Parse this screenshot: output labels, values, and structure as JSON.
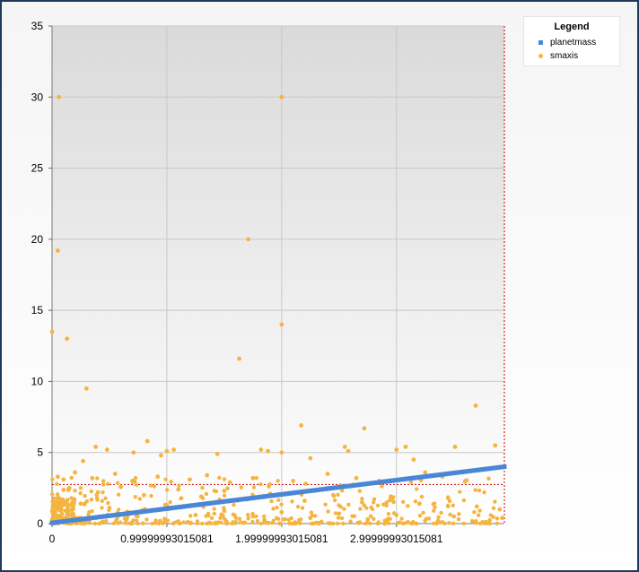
{
  "chart_data": {
    "type": "scatter",
    "title": "",
    "xlabel": "",
    "ylabel": "",
    "xlim": [
      0,
      3.94
    ],
    "ylim": [
      0,
      35
    ],
    "x_ticks": [
      {
        "value": 0,
        "label": "0"
      },
      {
        "value": 0.99999993015081,
        "label": "0.99999993015081"
      },
      {
        "value": 1.99999993015081,
        "label": "1.99999993015081"
      },
      {
        "value": 2.99999993015081,
        "label": "2.99999993015081"
      }
    ],
    "y_ticks": [
      0,
      5,
      10,
      15,
      20,
      25,
      30,
      35
    ],
    "grid": true,
    "legend": {
      "title": "Legend",
      "placement": "top-right",
      "entries": [
        {
          "name": "planetmass",
          "color": "#4a86d8",
          "marker": "square"
        },
        {
          "name": "smaxis",
          "color": "#f5b440",
          "marker": "circle"
        }
      ]
    },
    "reference_lines": [
      {
        "axis": "y",
        "value": 2.75,
        "color": "#cc0000",
        "style": "dashed"
      },
      {
        "axis": "x",
        "value": 3.94,
        "color": "#cc0000",
        "style": "dashed"
      }
    ],
    "series": [
      {
        "name": "planetmass",
        "color": "#4a86d8",
        "trend": "linear",
        "x_range": [
          0,
          3.94
        ],
        "y_range": [
          0.05,
          4.0
        ]
      },
      {
        "name": "smaxis",
        "color": "#f5b440",
        "points": [
          [
            0.06,
            30.0
          ],
          [
            2.0,
            30.0
          ],
          [
            0.05,
            19.2
          ],
          [
            1.71,
            20.0
          ],
          [
            0.0,
            13.5
          ],
          [
            0.13,
            13.0
          ],
          [
            2.0,
            14.0
          ],
          [
            1.63,
            11.6
          ],
          [
            0.3,
            9.5
          ],
          [
            3.69,
            8.3
          ],
          [
            2.17,
            6.9
          ],
          [
            2.72,
            6.7
          ],
          [
            0.83,
            5.8
          ],
          [
            1.06,
            5.2
          ],
          [
            1.0,
            5.1
          ],
          [
            2.55,
            5.4
          ],
          [
            2.58,
            5.1
          ],
          [
            1.82,
            5.2
          ],
          [
            1.88,
            5.1
          ],
          [
            2.0,
            5.0
          ],
          [
            3.08,
            5.4
          ],
          [
            3.0,
            5.2
          ],
          [
            3.51,
            5.4
          ],
          [
            3.86,
            5.5
          ],
          [
            0.38,
            5.4
          ],
          [
            0.48,
            5.2
          ],
          [
            0.71,
            5.0
          ],
          [
            1.44,
            4.9
          ],
          [
            2.25,
            4.6
          ],
          [
            3.15,
            4.5
          ],
          [
            0.95,
            4.8
          ],
          [
            0.27,
            4.4
          ],
          [
            0.05,
            3.3
          ],
          [
            0.1,
            3.1
          ],
          [
            0.2,
            3.6
          ],
          [
            0.35,
            3.2
          ],
          [
            0.55,
            3.5
          ],
          [
            0.7,
            3.0
          ],
          [
            0.92,
            3.3
          ],
          [
            1.2,
            3.1
          ],
          [
            1.35,
            3.4
          ],
          [
            1.55,
            2.9
          ],
          [
            1.75,
            3.2
          ],
          [
            2.1,
            3.0
          ],
          [
            2.4,
            3.5
          ],
          [
            2.65,
            3.2
          ],
          [
            2.85,
            3.0
          ],
          [
            3.25,
            3.6
          ],
          [
            3.4,
            3.3
          ],
          [
            3.6,
            3.0
          ],
          [
            0.15,
            2.5
          ],
          [
            0.4,
            2.2
          ],
          [
            0.6,
            2.6
          ],
          [
            0.8,
            2.0
          ],
          [
            1.1,
            2.4
          ],
          [
            1.3,
            1.9
          ],
          [
            1.5,
            2.3
          ],
          [
            1.7,
            1.7
          ],
          [
            1.9,
            2.1
          ],
          [
            2.2,
            1.6
          ],
          [
            2.45,
            2.0
          ],
          [
            2.7,
            1.5
          ],
          [
            2.95,
            1.9
          ],
          [
            3.2,
            1.4
          ],
          [
            3.45,
            1.8
          ],
          [
            3.7,
            1.2
          ],
          [
            3.9,
            1.0
          ],
          [
            0.05,
            1.8
          ],
          [
            0.02,
            1.5
          ],
          [
            0.08,
            1.2
          ],
          [
            0.12,
            0.9
          ],
          [
            0.03,
            0.7
          ],
          [
            0.07,
            0.5
          ],
          [
            0.1,
            0.3
          ],
          [
            0.0,
            0.2
          ],
          [
            0.25,
            1.4
          ],
          [
            0.5,
            1.1
          ],
          [
            0.75,
            0.8
          ],
          [
            1.0,
            1.3
          ],
          [
            1.25,
            0.6
          ],
          [
            1.5,
            0.9
          ],
          [
            1.75,
            0.5
          ],
          [
            2.0,
            0.8
          ],
          [
            2.25,
            0.4
          ],
          [
            2.5,
            0.7
          ],
          [
            2.75,
            0.3
          ],
          [
            3.0,
            0.6
          ],
          [
            3.25,
            0.2
          ],
          [
            3.5,
            0.5
          ],
          [
            3.75,
            0.1
          ],
          [
            3.92,
            0.4
          ],
          [
            0.3,
            0.1
          ],
          [
            0.9,
            0.05
          ],
          [
            1.6,
            0.1
          ],
          [
            2.3,
            0.05
          ],
          [
            3.1,
            0.1
          ],
          [
            1.1,
            0.15
          ],
          [
            2.9,
            0.2
          ],
          [
            0.65,
            0.3
          ],
          [
            1.85,
            0.25
          ]
        ]
      }
    ]
  }
}
